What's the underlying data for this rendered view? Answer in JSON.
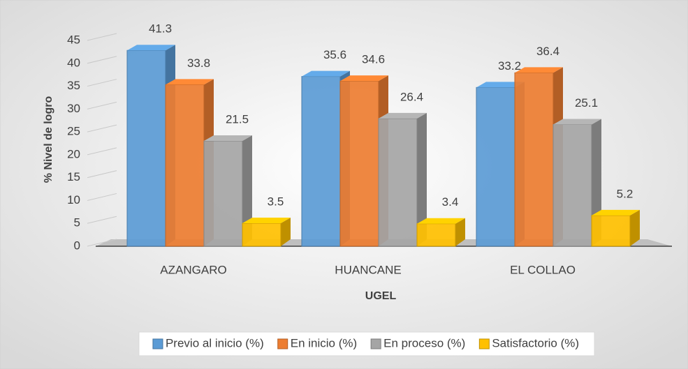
{
  "chart_data": {
    "type": "bar3d",
    "categories": [
      "AZANGARO",
      "HUANCANE",
      "EL COLLAO"
    ],
    "series": [
      {
        "name": "Previo al inicio (%)",
        "color": "#5b9bd5",
        "values": [
          41.3,
          35.6,
          33.2
        ]
      },
      {
        "name": "En inicio (%)",
        "color": "#ed7d31",
        "values": [
          33.8,
          34.6,
          36.4
        ]
      },
      {
        "name": "En proceso (%)",
        "color": "#a5a5a5",
        "values": [
          21.5,
          26.4,
          25.1
        ]
      },
      {
        "name": "Satisfactorio (%)",
        "color": "#ffc000",
        "values": [
          3.5,
          3.4,
          5.2
        ]
      }
    ],
    "xlabel": "UGEL",
    "ylabel": "% Nivel de logro",
    "ylim": [
      0,
      45
    ],
    "yticks": [
      0,
      5,
      10,
      15,
      20,
      25,
      30,
      35,
      40,
      45
    ],
    "grid": true,
    "legend": "bottom"
  }
}
